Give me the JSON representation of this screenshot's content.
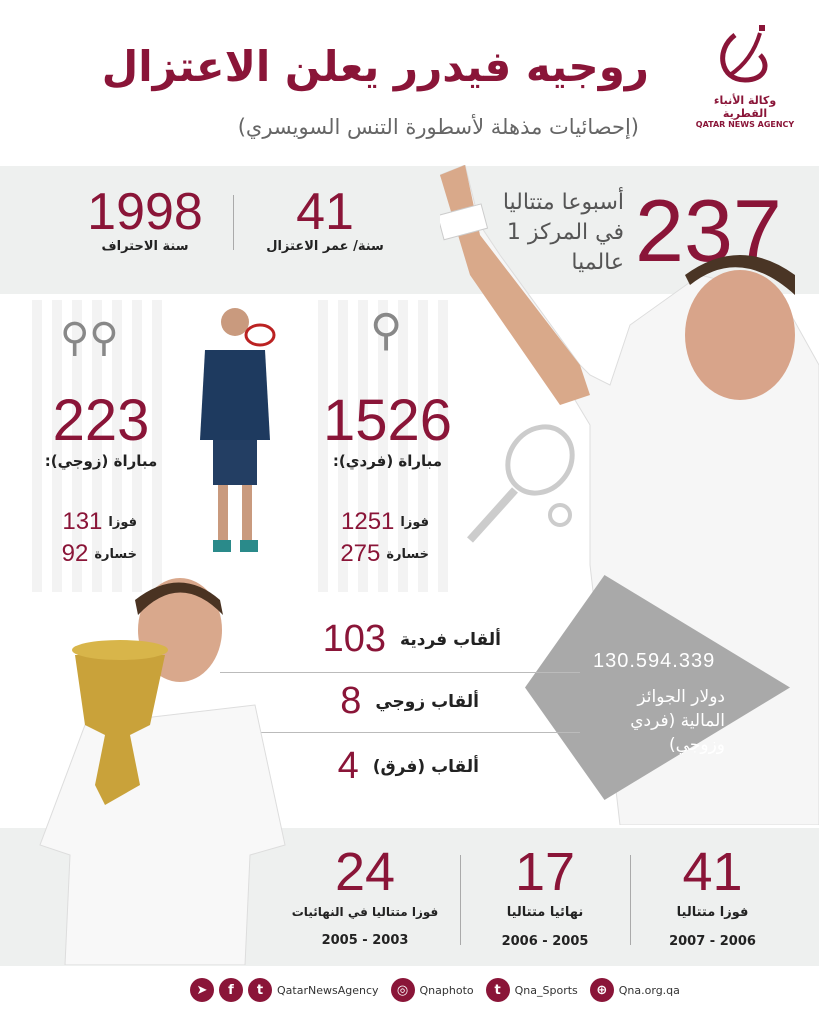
{
  "header": {
    "title": "روجيه فيدرر يعلن الاعتزال",
    "subtitle": "(إحصائيات مذهلة لأسطورة التنس السويسري)",
    "logo_ar": "وكالة الأنباء القطرية",
    "logo_en": "QATAR NEWS AGENCY"
  },
  "top": {
    "weeks": {
      "value": "237",
      "label_lines": [
        "أسبوعا متتاليا",
        "في المركز 1",
        "عالميا"
      ]
    },
    "age": {
      "value": "41",
      "label": "سنة/ عمر الاعتزال"
    },
    "pro": {
      "value": "1998",
      "label": "سنة الاحتراف"
    }
  },
  "singles": {
    "value": "1526",
    "label": "مباراة (فردي):",
    "wins": "1251",
    "wins_label": "فوزا",
    "losses": "275",
    "losses_label": "خسارة"
  },
  "doubles": {
    "value": "223",
    "label": "مباراة (زوجي):",
    "wins": "131",
    "wins_label": "فوزا",
    "losses": "92",
    "losses_label": "خسارة"
  },
  "titles": [
    {
      "value": "103",
      "label": "ألقاب فردية"
    },
    {
      "value": "8",
      "label": "ألقاب زوجي"
    },
    {
      "value": "4",
      "label": "ألقاب (فرق)"
    }
  ],
  "prize": {
    "value": "130.594.339",
    "label": "دولار الجوائز المالية (فردي وزوجي)"
  },
  "streaks": [
    {
      "value": "41",
      "label": "فوزا متتاليا",
      "years": "2007 - 2006"
    },
    {
      "value": "17",
      "label": "نهائيا متتاليا",
      "years": "2006 - 2005"
    },
    {
      "value": "24",
      "label": "فوزا متتاليا في النهائيات",
      "years": "2005 - 2003"
    }
  ],
  "footer": {
    "handle": "QatarNewsAgency",
    "instagram": "Qnaphoto",
    "twitter": "Qna_Sports",
    "website": "Qna.org.qa"
  },
  "colors": {
    "accent": "#8a1538",
    "band": "#eef0ef"
  }
}
